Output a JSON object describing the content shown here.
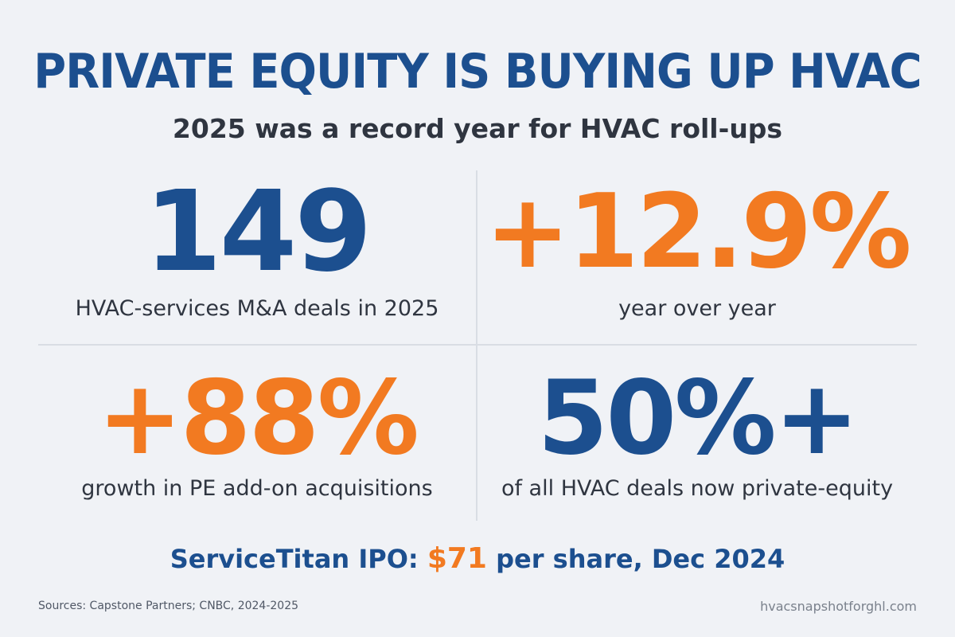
{
  "header": {
    "title": "PRIVATE EQUITY IS BUYING UP HVAC",
    "subtitle": "2025 was a record year for HVAC roll-ups"
  },
  "stats": [
    {
      "value": "149",
      "label": "HVAC-services M&A deals in 2025",
      "color": "#1c4f8f"
    },
    {
      "value": "+12.9%",
      "label": "year over year",
      "color": "#f27a21"
    },
    {
      "value": "+88%",
      "label": "growth in PE add-on acquisitions",
      "color": "#f27a21"
    },
    {
      "value": "50%+",
      "label": "of all HVAC deals now private-equity",
      "color": "#1c4f8f"
    }
  ],
  "ipo": {
    "prefix": "ServiceTitan IPO:",
    "price": "$71",
    "suffix": "per share, Dec 2024"
  },
  "footer": {
    "sources": "Sources: Capstone Partners; CNBC, 2024-2025",
    "website": "hvacsnapshotforghl.com"
  },
  "colors": {
    "background": "#f0f2f6",
    "brand_blue": "#1c4f8f",
    "accent_orange": "#f27a21",
    "text_dark": "#2f3540"
  }
}
